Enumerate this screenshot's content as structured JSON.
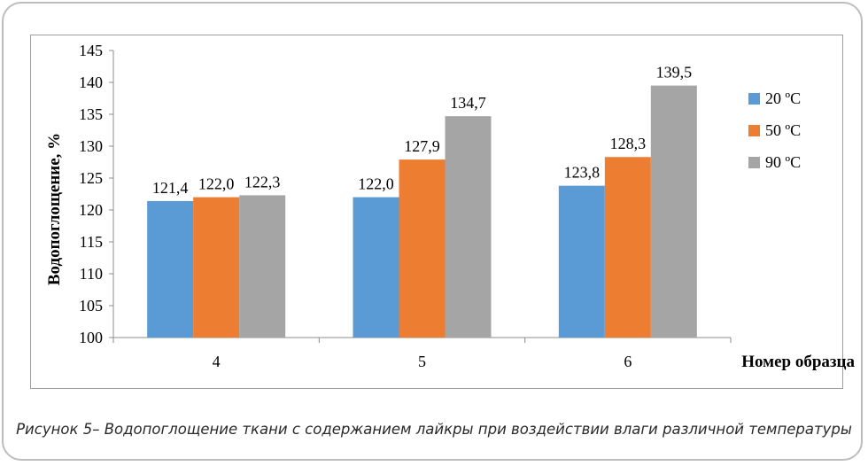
{
  "caption": "Рисунок 5– Водопоглощение ткани с содержанием лайкры при воздействии влаги различной температуры",
  "chart_data": {
    "type": "bar",
    "categories": [
      "4",
      "5",
      "6"
    ],
    "series": [
      {
        "name": "20 ºС",
        "color": "#5b9bd5",
        "values": [
          121.4,
          122.0,
          123.8
        ],
        "labels": [
          "121,4",
          "122,0",
          "123,8"
        ]
      },
      {
        "name": "50 ºС",
        "color": "#ed7d31",
        "values": [
          122.0,
          127.9,
          128.3
        ],
        "labels": [
          "122,0",
          "127,9",
          "128,3"
        ]
      },
      {
        "name": "90 ºС",
        "color": "#a5a5a5",
        "values": [
          122.3,
          134.7,
          139.5
        ],
        "labels": [
          "122,3",
          "134,7",
          "139,5"
        ]
      }
    ],
    "ylabel": "Водопоглощение, %",
    "xlabel": "Номер образца",
    "ylim": [
      100,
      145
    ],
    "yticks": [
      "100",
      "105",
      "110",
      "115",
      "120",
      "125",
      "130",
      "135",
      "140",
      "145"
    ],
    "legend_position": "right",
    "grid": false
  }
}
